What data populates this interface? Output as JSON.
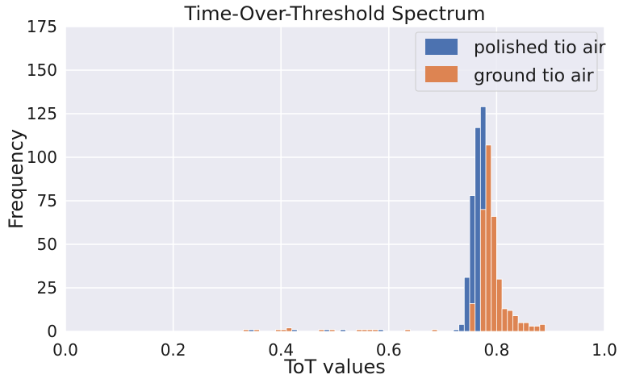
{
  "chart_data": {
    "type": "bar",
    "subtype": "histogram",
    "title": "Time-Over-Threshold Spectrum",
    "xlabel": "ToT values",
    "ylabel": "Frequency",
    "xlim": [
      0.0,
      1.0
    ],
    "ylim": [
      0,
      175
    ],
    "xticks": [
      "0.0",
      "0.2",
      "0.4",
      "0.6",
      "0.8",
      "1.0"
    ],
    "yticks": [
      "0",
      "25",
      "50",
      "75",
      "100",
      "125",
      "150",
      "175"
    ],
    "grid": true,
    "legend_position": "top-right",
    "series": [
      {
        "name": "polished tio air",
        "color": "#4c72b0",
        "bins": [
          [
            0.33,
            0.34,
            1
          ],
          [
            0.34,
            0.35,
            1
          ],
          [
            0.4,
            0.41,
            1
          ],
          [
            0.42,
            0.43,
            1
          ],
          [
            0.47,
            0.48,
            1
          ],
          [
            0.48,
            0.49,
            1
          ],
          [
            0.51,
            0.52,
            1
          ],
          [
            0.55,
            0.56,
            1
          ],
          [
            0.57,
            0.58,
            1
          ],
          [
            0.58,
            0.59,
            1
          ],
          [
            0.72,
            0.73,
            1
          ],
          [
            0.73,
            0.74,
            4
          ],
          [
            0.74,
            0.75,
            31
          ],
          [
            0.75,
            0.76,
            78
          ],
          [
            0.76,
            0.77,
            117
          ],
          [
            0.77,
            0.78,
            129
          ],
          [
            0.78,
            0.79,
            50
          ]
        ]
      },
      {
        "name": "ground tio air",
        "color": "#dd8452",
        "bins": [
          [
            0.33,
            0.34,
            1
          ],
          [
            0.35,
            0.36,
            1
          ],
          [
            0.39,
            0.4,
            1
          ],
          [
            0.4,
            0.41,
            1
          ],
          [
            0.41,
            0.42,
            2
          ],
          [
            0.47,
            0.48,
            1
          ],
          [
            0.49,
            0.5,
            1
          ],
          [
            0.54,
            0.55,
            1
          ],
          [
            0.55,
            0.56,
            1
          ],
          [
            0.56,
            0.57,
            1
          ],
          [
            0.57,
            0.58,
            1
          ],
          [
            0.63,
            0.64,
            1
          ],
          [
            0.68,
            0.69,
            1
          ],
          [
            0.75,
            0.76,
            16
          ],
          [
            0.77,
            0.78,
            70
          ],
          [
            0.78,
            0.79,
            107
          ],
          [
            0.79,
            0.8,
            66
          ],
          [
            0.8,
            0.81,
            30
          ],
          [
            0.81,
            0.82,
            13
          ],
          [
            0.82,
            0.83,
            12
          ],
          [
            0.83,
            0.84,
            9
          ],
          [
            0.84,
            0.85,
            5
          ],
          [
            0.85,
            0.86,
            5
          ],
          [
            0.86,
            0.87,
            3
          ],
          [
            0.87,
            0.88,
            3
          ],
          [
            0.88,
            0.89,
            4
          ]
        ]
      }
    ]
  }
}
